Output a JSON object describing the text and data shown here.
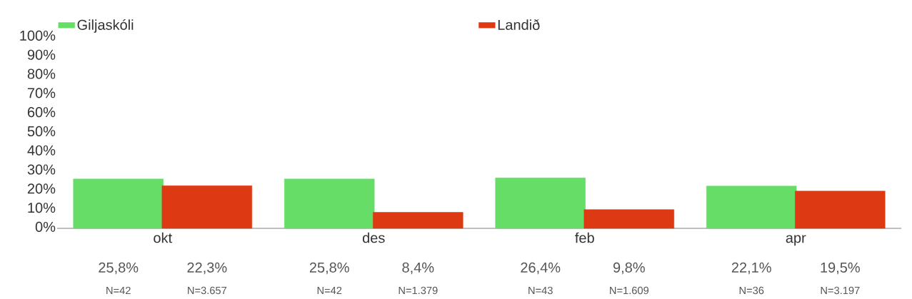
{
  "chart_data": {
    "type": "bar",
    "categories": [
      "okt",
      "des",
      "feb",
      "apr"
    ],
    "series": [
      {
        "name": "Giljaskóli",
        "color": "#66dd66",
        "values": [
          25.8,
          25.8,
          26.4,
          22.1
        ],
        "value_labels": [
          "25,8%",
          "25,8%",
          "26,4%",
          "22,1%"
        ]
      },
      {
        "name": "Landið",
        "color": "#dd3a14",
        "values": [
          22.3,
          8.4,
          9.8,
          19.5
        ],
        "value_labels": [
          "22,3%",
          "8,4%",
          "9,8%",
          "19,5%"
        ]
      }
    ],
    "ylim": [
      0,
      100
    ],
    "yticks": [
      {
        "value": 0,
        "label": "0%"
      },
      {
        "value": 10,
        "label": "10%"
      },
      {
        "value": 20,
        "label": "20%"
      },
      {
        "value": 30,
        "label": "30%"
      },
      {
        "value": 40,
        "label": "40%"
      },
      {
        "value": 50,
        "label": "50%"
      },
      {
        "value": 60,
        "label": "60%"
      },
      {
        "value": 70,
        "label": "70%"
      },
      {
        "value": 80,
        "label": "80%"
      },
      {
        "value": 90,
        "label": "90%"
      },
      {
        "value": 100,
        "label": "100%"
      }
    ],
    "legend": "top",
    "grid": false,
    "annotations": [
      "N=42",
      "N=3.657",
      "N=42",
      "N=1.379",
      "N=43",
      "N=1.609",
      "N=36",
      "N=3.197"
    ]
  }
}
